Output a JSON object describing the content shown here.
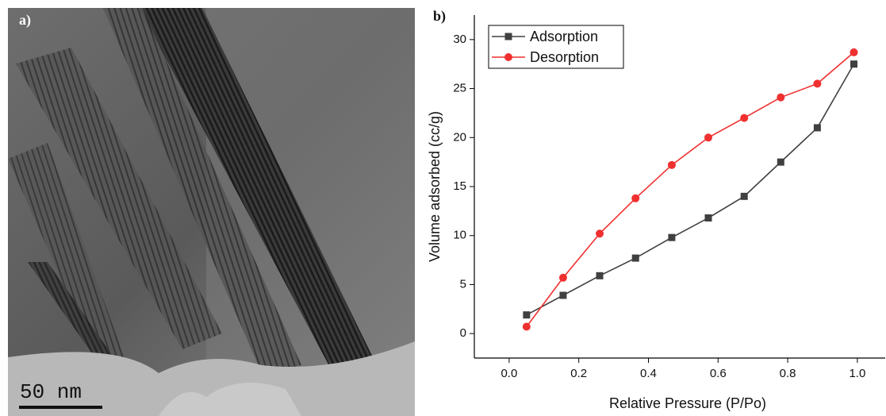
{
  "panel_a": {
    "label": "a)",
    "scale_bar": "50 nm"
  },
  "chart_data": {
    "type": "line",
    "panel_label": "b)",
    "x_label": "Relative Pressure (P/Po)",
    "y_label": "Volume adsorbed (cc/g)",
    "x": [
      0.05,
      0.155,
      0.26,
      0.363,
      0.467,
      0.572,
      0.675,
      0.78,
      0.885,
      0.99
    ],
    "series": [
      {
        "name": "Adsorption",
        "color": "#404040",
        "marker": "square",
        "values": [
          1.9,
          3.9,
          5.9,
          7.7,
          9.8,
          11.8,
          14.0,
          17.5,
          21.0,
          27.5
        ]
      },
      {
        "name": "Desorption",
        "color": "#f03030",
        "marker": "circle",
        "values": [
          0.7,
          5.7,
          10.2,
          13.8,
          17.2,
          20.0,
          22.0,
          24.1,
          25.5,
          28.7
        ]
      }
    ],
    "xlim": [
      -0.1,
      1.08
    ],
    "ylim": [
      -2.5,
      32.5
    ],
    "xticks": [
      {
        "value": 0,
        "label": "0.0"
      },
      0.2,
      0.4,
      0.6,
      0.8,
      {
        "value": 1,
        "label": "1.0"
      }
    ],
    "yticks": [
      0,
      5,
      10,
      15,
      20,
      25,
      30
    ],
    "grid": false,
    "legend": "top-left"
  }
}
